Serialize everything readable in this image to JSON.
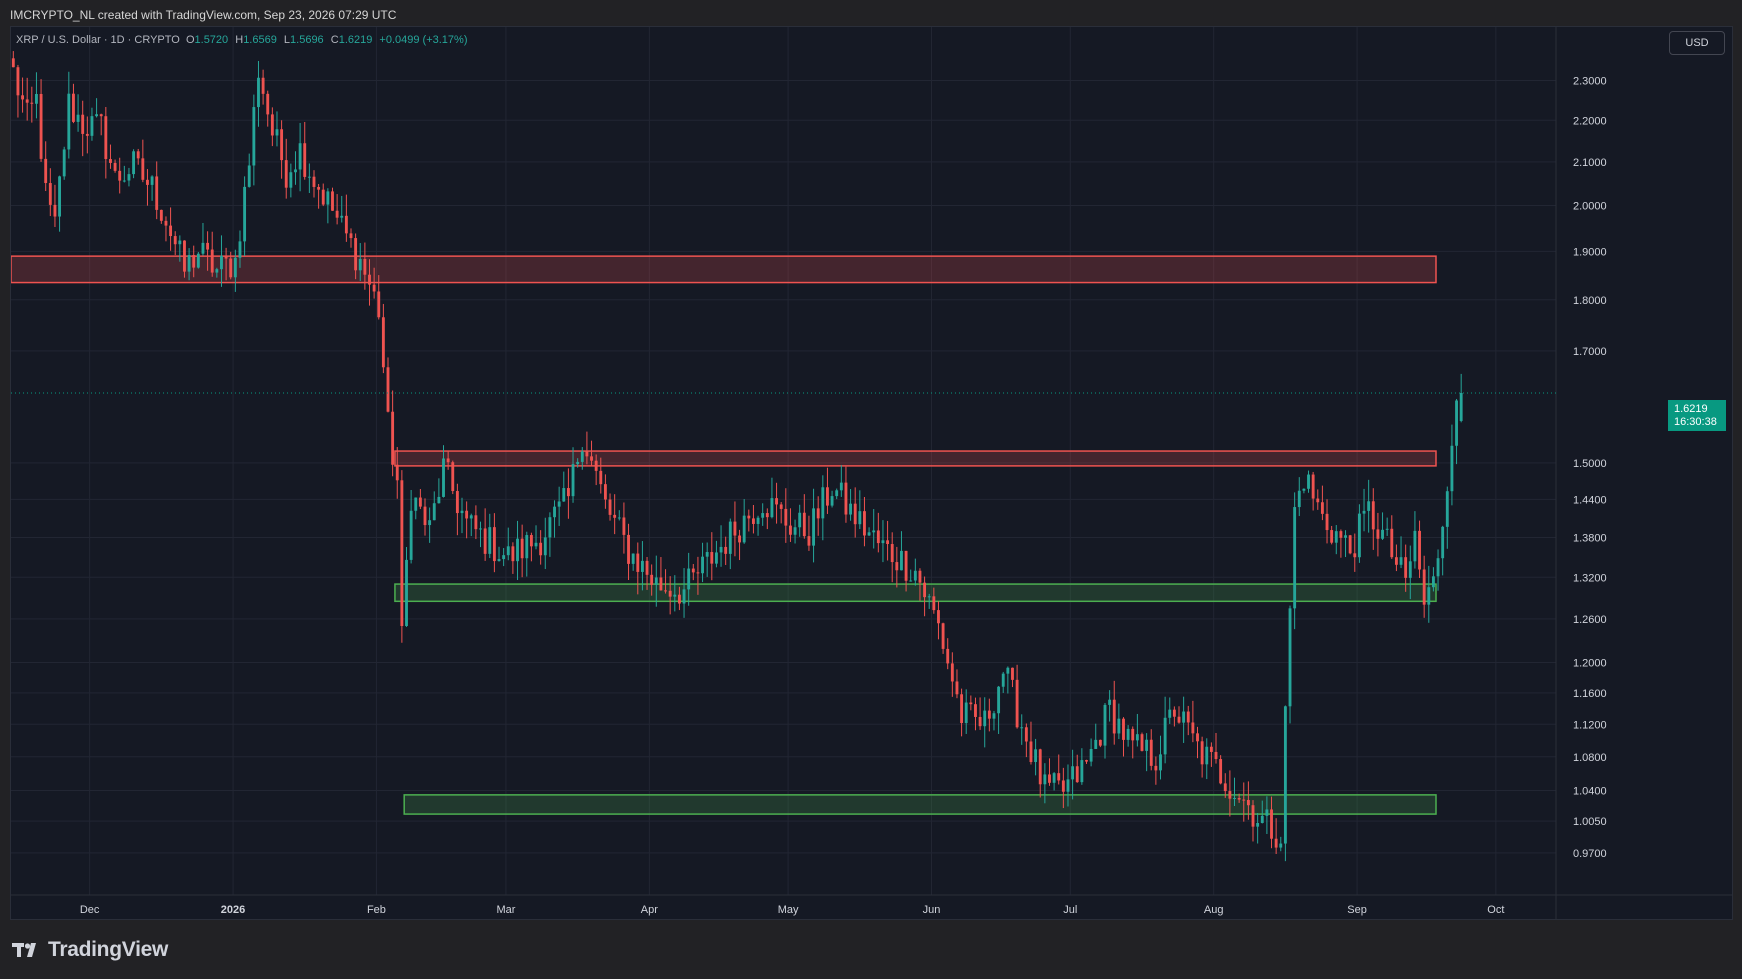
{
  "header": {
    "credit": "IMCRYPTO_NL created with TradingView.com, Sep 23, 2026 07:29 UTC"
  },
  "symbol": {
    "title": "XRP / U.S. Dollar · 1D · CRYPTO",
    "open_label": "O",
    "open": "1.5720",
    "high_label": "H",
    "high": "1.6569",
    "low_label": "L",
    "low": "1.5696",
    "close_label": "C",
    "close": "1.6219",
    "change": "+0.0499 (+3.17%)"
  },
  "currency_button": "USD",
  "price_tag": {
    "price": "1.6219",
    "countdown": "16:30:38"
  },
  "footer": {
    "brand": "TradingView"
  },
  "colors": {
    "background": "#151924",
    "up": "#26a69a",
    "down": "#ef5350",
    "resistance_zone": "#ef5350",
    "support_zone": "#4caf50",
    "price_tag": "#089981"
  },
  "chart_data": {
    "type": "candlestick",
    "symbol": "XRP / U.S. Dollar",
    "interval": "1D",
    "scale": "log",
    "grid": true,
    "x_range": [
      "2025-11-14",
      "2026-10-14"
    ],
    "ylim": [
      0.94,
      2.42
    ],
    "xlabels": [
      {
        "date": "2025-12-01",
        "label": "Dec"
      },
      {
        "date": "2026-01-01",
        "label": "2026"
      },
      {
        "date": "2026-02-01",
        "label": "Feb"
      },
      {
        "date": "2026-03-01",
        "label": "Mar"
      },
      {
        "date": "2026-04-01",
        "label": "Apr"
      },
      {
        "date": "2026-05-01",
        "label": "May"
      },
      {
        "date": "2026-06-01",
        "label": "Jun"
      },
      {
        "date": "2026-07-01",
        "label": "Jul"
      },
      {
        "date": "2026-08-01",
        "label": "Aug"
      },
      {
        "date": "2026-09-01",
        "label": "Sep"
      },
      {
        "date": "2026-10-01",
        "label": "Oct"
      }
    ],
    "yticks": [
      "2.3000",
      "2.2000",
      "2.1000",
      "2.0000",
      "1.9000",
      "1.8000",
      "1.7000",
      "1.5000",
      "1.4400",
      "1.3800",
      "1.3200",
      "1.2600",
      "1.2000",
      "1.1600",
      "1.1200",
      "1.0800",
      "1.0400",
      "1.0050",
      "0.9700"
    ],
    "last_price": 1.6219,
    "zones": [
      {
        "kind": "resistance",
        "start": "2025-11-14",
        "end": "2026-10-14",
        "low": 1.835,
        "high": 1.89
      },
      {
        "kind": "resistance",
        "start": "2026-02-05",
        "end": "2026-10-14",
        "low": 1.495,
        "high": 1.52
      },
      {
        "kind": "support",
        "start": "2026-02-05",
        "end": "2026-10-14",
        "low": 1.285,
        "high": 1.31
      },
      {
        "kind": "support",
        "start": "2026-02-07",
        "end": "2026-10-14",
        "low": 1.013,
        "high": 1.035
      }
    ],
    "anchors": [
      [
        "2025-11-14",
        2.32
      ],
      [
        "2025-11-17",
        2.2
      ],
      [
        "2025-11-19",
        2.25
      ],
      [
        "2025-11-21",
        2.02
      ],
      [
        "2025-11-23",
        1.95
      ],
      [
        "2025-11-26",
        2.24
      ],
      [
        "2025-11-29",
        2.19
      ],
      [
        "2025-12-03",
        2.18
      ],
      [
        "2025-12-06",
        2.06
      ],
      [
        "2025-12-10",
        2.09
      ],
      [
        "2025-12-14",
        2.04
      ],
      [
        "2025-12-17",
        1.97
      ],
      [
        "2025-12-21",
        1.86
      ],
      [
        "2025-12-24",
        1.9
      ],
      [
        "2025-12-28",
        1.86
      ],
      [
        "2026-01-01",
        1.88
      ],
      [
        "2026-01-04",
        2.1
      ],
      [
        "2026-01-06",
        2.33
      ],
      [
        "2026-01-09",
        2.17
      ],
      [
        "2026-01-12",
        2.08
      ],
      [
        "2026-01-15",
        2.13
      ],
      [
        "2026-01-18",
        2.06
      ],
      [
        "2026-01-22",
        1.99
      ],
      [
        "2026-01-25",
        1.93
      ],
      [
        "2026-01-28",
        1.88
      ],
      [
        "2026-02-01",
        1.78
      ],
      [
        "2026-02-03",
        1.56
      ],
      [
        "2026-02-05",
        1.47
      ],
      [
        "2026-02-06",
        1.23
      ],
      [
        "2026-02-08",
        1.45
      ],
      [
        "2026-02-12",
        1.39
      ],
      [
        "2026-02-15",
        1.49
      ],
      [
        "2026-02-20",
        1.4
      ],
      [
        "2026-03-01",
        1.35
      ],
      [
        "2026-03-08",
        1.38
      ],
      [
        "2026-03-14",
        1.44
      ],
      [
        "2026-03-17",
        1.55
      ],
      [
        "2026-03-22",
        1.43
      ],
      [
        "2026-03-27",
        1.36
      ],
      [
        "2026-04-02",
        1.31
      ],
      [
        "2026-04-08",
        1.3
      ],
      [
        "2026-04-14",
        1.35
      ],
      [
        "2026-04-20",
        1.4
      ],
      [
        "2026-04-25",
        1.44
      ],
      [
        "2026-05-01",
        1.4
      ],
      [
        "2026-05-05",
        1.39
      ],
      [
        "2026-05-10",
        1.46
      ],
      [
        "2026-05-14",
        1.42
      ],
      [
        "2026-05-20",
        1.37
      ],
      [
        "2026-05-28",
        1.33
      ],
      [
        "2026-06-02",
        1.25
      ],
      [
        "2026-06-07",
        1.13
      ],
      [
        "2026-06-12",
        1.12
      ],
      [
        "2026-06-16",
        1.19
      ],
      [
        "2026-06-20",
        1.12
      ],
      [
        "2026-06-25",
        1.04
      ],
      [
        "2026-06-29",
        1.04
      ],
      [
        "2026-07-04",
        1.07
      ],
      [
        "2026-07-09",
        1.14
      ],
      [
        "2026-07-14",
        1.09
      ],
      [
        "2026-07-19",
        1.08
      ],
      [
        "2026-07-23",
        1.14
      ],
      [
        "2026-07-28",
        1.09
      ],
      [
        "2026-08-02",
        1.06
      ],
      [
        "2026-08-07",
        1.03
      ],
      [
        "2026-08-10",
        1.01
      ],
      [
        "2026-08-15",
        0.99
      ],
      [
        "2026-08-16",
        1.13
      ],
      [
        "2026-08-18",
        1.42
      ],
      [
        "2026-08-20",
        1.48
      ],
      [
        "2026-08-24",
        1.41
      ],
      [
        "2026-08-30",
        1.36
      ],
      [
        "2026-09-03",
        1.42
      ],
      [
        "2026-09-07",
        1.37
      ],
      [
        "2026-09-11",
        1.31
      ],
      [
        "2026-09-13",
        1.38
      ],
      [
        "2026-09-15",
        1.28
      ],
      [
        "2026-09-17",
        1.31
      ],
      [
        "2026-09-19",
        1.41
      ],
      [
        "2026-09-21",
        1.55
      ],
      [
        "2026-09-23",
        1.6219
      ]
    ]
  }
}
